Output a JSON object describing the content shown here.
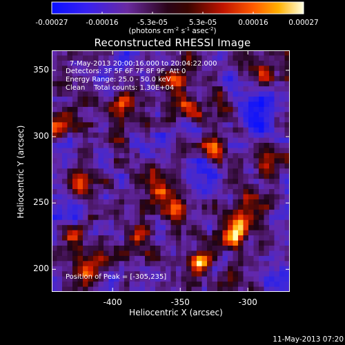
{
  "colorbar": {
    "tick_labels": [
      "-0.00027",
      "-0.00016",
      "-5.3e-05",
      "5.3e-05",
      "0.00016",
      "0.00027"
    ],
    "units": {
      "prefix": "(photons cm",
      "exp1": "-2",
      "mid1": " s",
      "exp2": "-1",
      "mid2": " asec",
      "exp3": "-2",
      "suffix": ")"
    }
  },
  "title": "Reconstructed RHESSI Image",
  "info_lines": [
    "7-May-2013 20:00:16.000 to 20:04:22.000",
    "Detectors: 3F 5F 6F 7F 8F 9F, Att 0",
    "Energy Range: 25.0 - 50.0 keV",
    "Clean    Total counts: 1.30E+04"
  ],
  "peak_text": "Position of Peak = [-305,235]",
  "timestamp": "11-May-2013 07:20",
  "chart_data": {
    "type": "heatmap",
    "title": "Reconstructed RHESSI Image",
    "xlabel": "Heliocentric X (arcsec)",
    "ylabel": "Heliocentric Y (arcsec)",
    "xlim": [
      -445,
      -269
    ],
    "ylim": [
      183,
      365
    ],
    "x_ticks": [
      -400,
      -350,
      -300
    ],
    "y_ticks": [
      200,
      250,
      300,
      350
    ],
    "x_tick_labels": [
      "-400",
      "-350",
      "-300"
    ],
    "y_tick_labels": [
      "200",
      "250",
      "300",
      "350"
    ],
    "colorbar_range": [
      -0.00027,
      0.00027
    ],
    "peak_position": [
      -305,
      235
    ],
    "colormap": [
      "#0a10ff",
      "#5a2cd0",
      "#6a2aa0",
      "#2a0418",
      "#7a0e00",
      "#d01800",
      "#ff5a00",
      "#ffb000",
      "#ffffa0"
    ],
    "hotspots": [
      {
        "x": -425,
        "y": 265,
        "intensity": 1.0
      },
      {
        "x": -392,
        "y": 325,
        "intensity": 0.85
      },
      {
        "x": -398,
        "y": 300,
        "intensity": 0.6
      },
      {
        "x": -430,
        "y": 225,
        "intensity": 0.55
      },
      {
        "x": -420,
        "y": 200,
        "intensity": 0.7
      },
      {
        "x": -402,
        "y": 210,
        "intensity": 0.6
      },
      {
        "x": -380,
        "y": 225,
        "intensity": 0.65
      },
      {
        "x": -365,
        "y": 262,
        "intensity": 0.7
      },
      {
        "x": -352,
        "y": 245,
        "intensity": 0.6
      },
      {
        "x": -335,
        "y": 205,
        "intensity": 0.8
      },
      {
        "x": -312,
        "y": 222,
        "intensity": 0.85
      },
      {
        "x": -305,
        "y": 235,
        "intensity": 1.0
      },
      {
        "x": -298,
        "y": 255,
        "intensity": 0.7
      },
      {
        "x": -325,
        "y": 290,
        "intensity": 0.75
      },
      {
        "x": -322,
        "y": 325,
        "intensity": 0.5
      },
      {
        "x": -345,
        "y": 322,
        "intensity": 0.65
      },
      {
        "x": -356,
        "y": 345,
        "intensity": 0.55
      },
      {
        "x": -285,
        "y": 280,
        "intensity": 0.6
      },
      {
        "x": -283,
        "y": 205,
        "intensity": 0.55
      },
      {
        "x": -290,
        "y": 345,
        "intensity": 0.45
      },
      {
        "x": -440,
        "y": 305,
        "intensity": 0.45
      }
    ],
    "coldspots": [
      {
        "x": -292,
        "y": 318,
        "intensity": 1.0
      },
      {
        "x": -275,
        "y": 200,
        "intensity": 0.9
      },
      {
        "x": -432,
        "y": 250,
        "intensity": 0.5
      },
      {
        "x": -400,
        "y": 350,
        "intensity": 0.4
      },
      {
        "x": -372,
        "y": 290,
        "intensity": 0.45
      },
      {
        "x": -338,
        "y": 275,
        "intensity": 0.4
      }
    ]
  }
}
